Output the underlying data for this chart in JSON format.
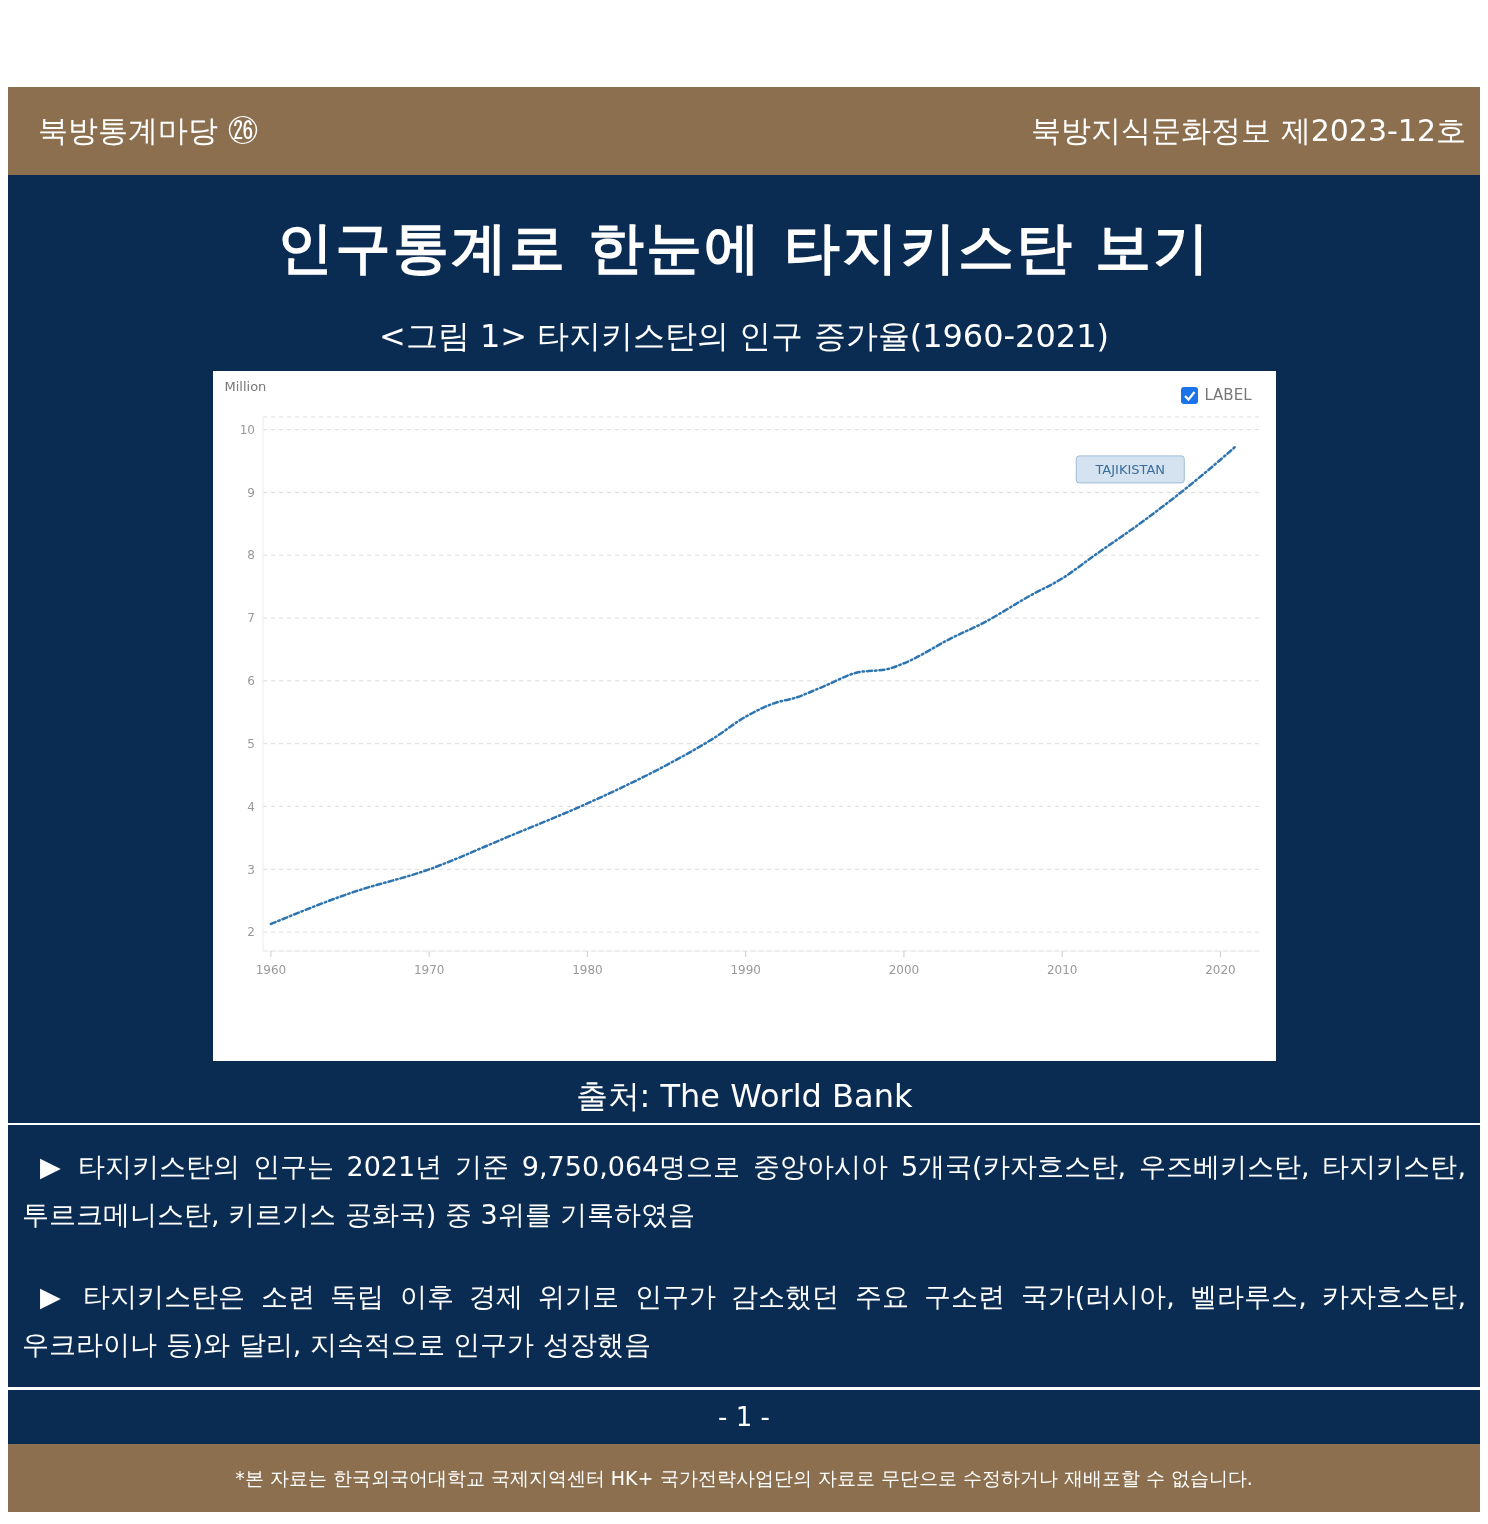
{
  "chart_data": {
    "type": "line",
    "title": "인구통계로 한눈에 타지키스탄 보기",
    "subtitle": "<그림 1> 타지키스탄의 인구 증가율(1960-2021)",
    "ylabel": "Million",
    "x": [
      1960,
      1965,
      1970,
      1975,
      1980,
      1985,
      1988,
      1990,
      1992,
      1993,
      1995,
      1997,
      1999,
      2000,
      2003,
      2005,
      2008,
      2010,
      2012,
      2015,
      2018,
      2020,
      2021
    ],
    "series": [
      {
        "name": "TAJIKISTAN",
        "color": "#2e75b0",
        "values": [
          2.13,
          2.62,
          3.0,
          3.52,
          4.05,
          4.66,
          5.09,
          5.43,
          5.66,
          5.72,
          5.92,
          6.13,
          6.19,
          6.28,
          6.68,
          6.92,
          7.36,
          7.63,
          7.99,
          8.52,
          9.1,
          9.52,
          9.74
        ]
      }
    ],
    "xlim": [
      1959.5,
      2022.5
    ],
    "xticks": [
      1960,
      1970,
      1980,
      1990,
      2000,
      2010,
      2020
    ],
    "ylim": [
      1.7,
      10.2
    ],
    "yticks": [
      2,
      3,
      4,
      5,
      6,
      7,
      8,
      9,
      10
    ],
    "grid": "y",
    "legend": false,
    "marker": "none",
    "line_style": "dashed",
    "annotations": [
      "북방통계마당 ㉖",
      "북방지식문화정보 제2023-12호",
      "LABEL",
      "출처: The World Bank",
      "▶ 타지키스탄의 인구는 2021년 기준 9,750,064명으로 중앙아시아 5개국(카자흐스탄, 우즈베키스탄, 타지키스탄, 투르크메니스탄, 키르기스 공화국) 중 3위를 기록하였음",
      "▶ 타지키스탄은 소련 독립 이후 경제 위기로 인구가 감소했던 주요 구소련 국가(러시아, 벨라루스, 카자흐스탄, 우크라이나 등)와 달리, 지속적으로 인구가 성장했음",
      "- 1 -",
      "*본 자료는 한국외국어대학교 국제지역센터 HK+ 국가전략사업단의 자료로 무단으로 수정하거나 재배포할 수 없습니다."
    ]
  }
}
